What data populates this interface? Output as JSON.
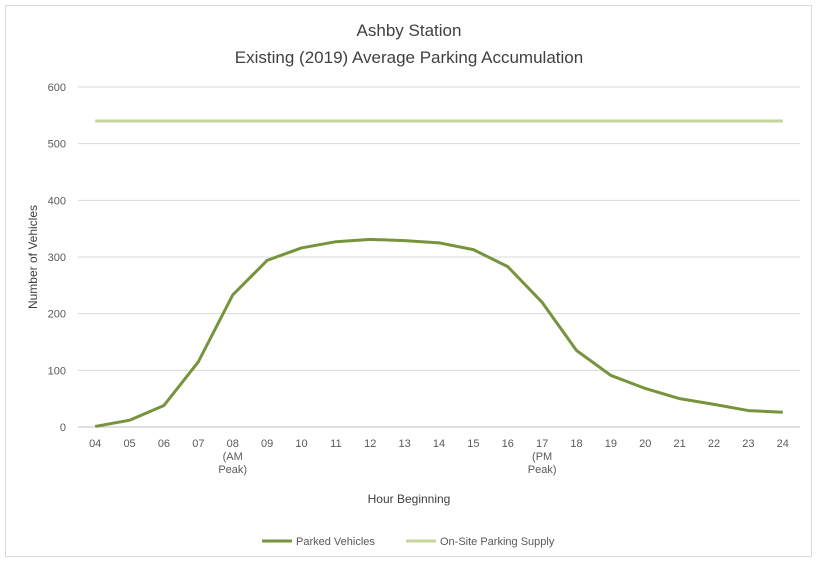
{
  "chart_data": {
    "type": "line",
    "title": [
      "Ashby Station",
      "Existing (2019) Average Parking Accumulation"
    ],
    "x_label": "Hour Beginning",
    "y_label": "Number of Vehicles",
    "categories": [
      "04",
      "05",
      "06",
      "07",
      "08\n(AM\nPeak)",
      "09",
      "10",
      "11",
      "12",
      "13",
      "14",
      "15",
      "16",
      "17\n(PM\nPeak)",
      "18",
      "19",
      "20",
      "21",
      "22",
      "23",
      "24"
    ],
    "series": [
      {
        "name": "Parked Vehicles",
        "color": "#77933c",
        "width": 3,
        "values": [
          1,
          12,
          38,
          115,
          233,
          294,
          316,
          327,
          331,
          329,
          325,
          313,
          283,
          220,
          135,
          91,
          68,
          50,
          40,
          29,
          26
        ]
      },
      {
        "name": "On-Site Parking Supply",
        "color": "#c3d69b",
        "width": 3,
        "values": [
          540,
          540,
          540,
          540,
          540,
          540,
          540,
          540,
          540,
          540,
          540,
          540,
          540,
          540,
          540,
          540,
          540,
          540,
          540,
          540,
          540
        ]
      }
    ],
    "ylim": [
      0,
      600
    ],
    "yticks": [
      0,
      100,
      200,
      300,
      400,
      500,
      600
    ],
    "grid": true,
    "legend": "bottom"
  }
}
